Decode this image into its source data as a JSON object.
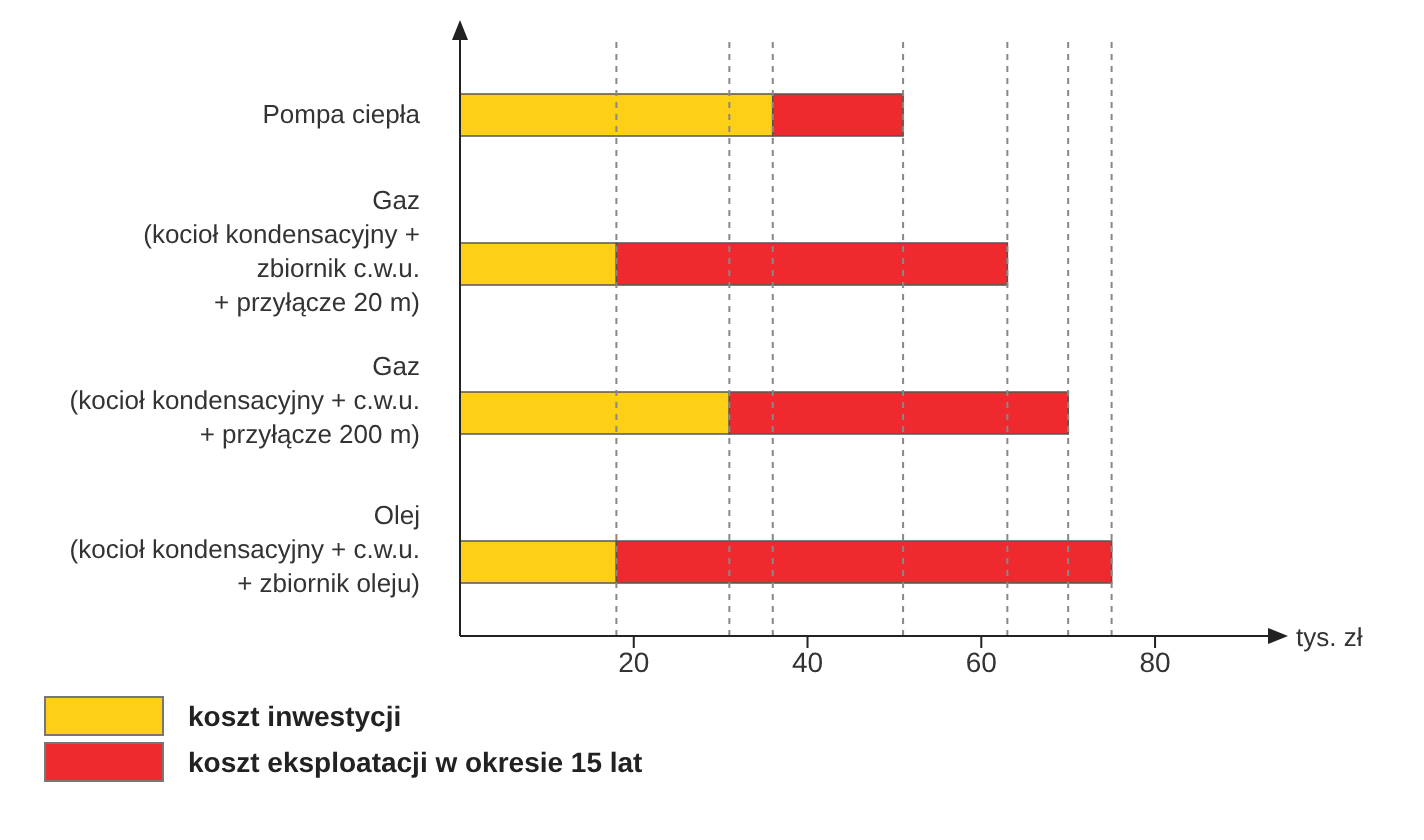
{
  "chart_data": {
    "type": "bar",
    "orientation": "horizontal",
    "stacked": true,
    "categories": [
      "Pompa ciepła",
      "Gaz\n(kocioł kondensacyjny +\nzbiornik c.w.u.\n+ przyłącze 20 m)",
      "Gaz\n(kocioł kondensacyjny + c.w.u.\n+ przyłącze 200 m)",
      "Olej\n(kocioł kondensacyjny + c.w.u.\n+ zbiornik oleju)"
    ],
    "series": [
      {
        "name": "koszt inwestycji",
        "color": "#fdd017",
        "values": [
          36,
          18,
          31,
          18
        ]
      },
      {
        "name": "koszt eksploatacji w okresie 15 lat",
        "color": "#ee2a2f",
        "values": [
          15,
          45,
          39,
          57
        ]
      }
    ],
    "xlabel": "tys. zł",
    "xlim": [
      0,
      93
    ],
    "xticks": [
      20,
      40,
      60,
      80
    ],
    "ref_lines": [
      {
        "axis": "x",
        "value": 18,
        "line_style": "dashed",
        "color": "#888888"
      },
      {
        "axis": "x",
        "value": 31,
        "line_style": "dashed",
        "color": "#888888"
      },
      {
        "axis": "x",
        "value": 36,
        "line_style": "dashed",
        "color": "#888888"
      },
      {
        "axis": "x",
        "value": 51,
        "line_style": "dashed",
        "color": "#888888"
      },
      {
        "axis": "x",
        "value": 63,
        "line_style": "dashed",
        "color": "#888888"
      },
      {
        "axis": "x",
        "value": 70,
        "line_style": "dashed",
        "color": "#888888"
      },
      {
        "axis": "x",
        "value": 75,
        "line_style": "dashed",
        "color": "#888888"
      }
    ],
    "grid": false,
    "legend": "bottom left"
  }
}
